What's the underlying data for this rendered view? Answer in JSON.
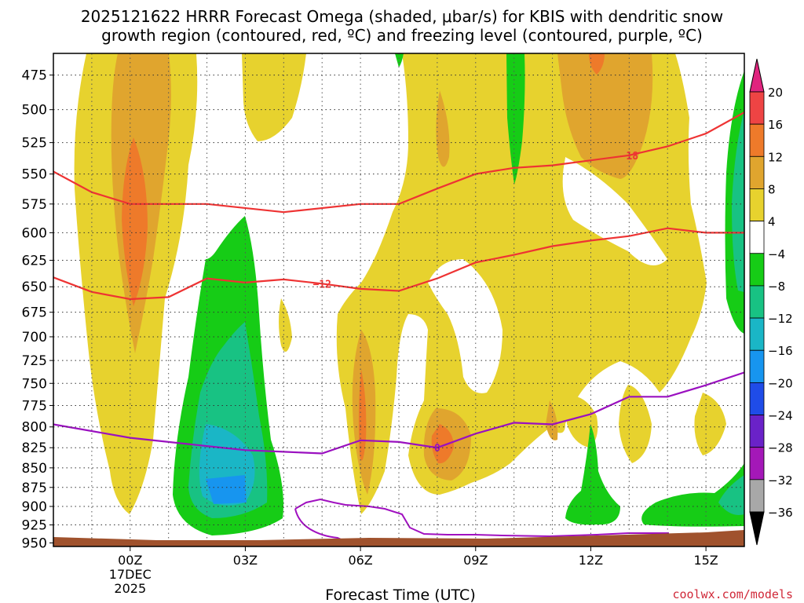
{
  "chart_data": {
    "type": "heatmap",
    "title_line1": "2025121622 HRRR Forecast Omega (shaded, μbar/s) for KBIS with dendritic snow",
    "title_line2": "growth region (contoured, red, ºC) and freezing level (contoured, purple, ºC)",
    "xlabel": "Forecast Time (UTC)",
    "x_ticks": [
      {
        "h": 0,
        "label": "00Z",
        "sub1": "17DEC",
        "sub2": "2025"
      },
      {
        "h": 3,
        "label": "03Z"
      },
      {
        "h": 6,
        "label": "06Z"
      },
      {
        "h": 9,
        "label": "09Z"
      },
      {
        "h": 12,
        "label": "12Z"
      },
      {
        "h": 15,
        "label": "15Z"
      }
    ],
    "xlim": [
      -2,
      16
    ],
    "y_ticks": [
      "475",
      "500",
      "525",
      "550",
      "575",
      "600",
      "625",
      "650",
      "675",
      "700",
      "725",
      "750",
      "775",
      "800",
      "825",
      "850",
      "875",
      "900",
      "925",
      "950"
    ],
    "ylim_hpa": [
      460,
      955
    ],
    "colorbar_labels": [
      "20",
      "16",
      "12",
      "8",
      "4",
      "−4",
      "−8",
      "−12",
      "−16",
      "−20",
      "−24",
      "−28",
      "−32",
      "−36"
    ],
    "colorbar_colors": [
      "#ee4444",
      "#ee7a2a",
      "#e0a52e",
      "#e7d22e",
      "#ffffff",
      "#16cc16",
      "#18c283",
      "#1ab6c6",
      "#1795ef",
      "#1f4ce8",
      "#6a22c8",
      "#a418b8",
      "#a8a8a8"
    ],
    "colorbar_top_color": "#e0247e",
    "colorbar_bottom_color": "#000000",
    "contours_red": [
      {
        "label": "−18",
        "points": [
          [
            -2,
            548
          ],
          [
            -1,
            565
          ],
          [
            0,
            575
          ],
          [
            2,
            575
          ],
          [
            4,
            582
          ],
          [
            6,
            575
          ],
          [
            7,
            575
          ],
          [
            8,
            562
          ],
          [
            9,
            550
          ],
          [
            10,
            545
          ],
          [
            11,
            543
          ],
          [
            13,
            535
          ],
          [
            14,
            528
          ],
          [
            15,
            518
          ],
          [
            16,
            502
          ]
        ]
      },
      {
        "label": "−12",
        "points": [
          [
            -2,
            641
          ],
          [
            -1,
            655
          ],
          [
            0,
            662
          ],
          [
            1,
            660
          ],
          [
            2,
            642
          ],
          [
            3,
            646
          ],
          [
            4,
            643
          ],
          [
            5,
            647
          ],
          [
            6,
            652
          ],
          [
            7,
            654
          ],
          [
            8,
            642
          ],
          [
            9,
            627
          ],
          [
            10,
            620
          ],
          [
            11,
            612
          ],
          [
            12,
            607
          ],
          [
            13,
            603
          ],
          [
            14,
            596
          ],
          [
            15,
            600
          ],
          [
            16,
            600
          ]
        ]
      }
    ],
    "contours_purple": [
      {
        "label": "0",
        "points": [
          [
            -2,
            797
          ],
          [
            0,
            813
          ],
          [
            1,
            818
          ],
          [
            3,
            828
          ],
          [
            4,
            830
          ],
          [
            5,
            832
          ],
          [
            6,
            816
          ],
          [
            7,
            818
          ],
          [
            8,
            825
          ],
          [
            9,
            808
          ],
          [
            10,
            795
          ],
          [
            11,
            797
          ],
          [
            12,
            785
          ],
          [
            13,
            765
          ],
          [
            14,
            765
          ],
          [
            15,
            752
          ],
          [
            16,
            738
          ]
        ]
      }
    ],
    "contour_labels_text": {
      "red_upper": "−18",
      "red_lower": "−12",
      "purple": "0"
    },
    "shaded_regions": [
      {
        "value": "4 to 8",
        "color": "#e7d22e",
        "desc": "broad weak ascent column 00Z, 00-03Z upper, 05Z-16Z"
      },
      {
        "value": "8 to 12",
        "color": "#e0a52e",
        "desc": "cores near 00Z, 06Z, 08Z, 12Z"
      },
      {
        "value": "12 to 16",
        "color": "#ee7a2a",
        "desc": "strongest cores near 00Z 560-700 hPa and 08Z 825 hPa"
      },
      {
        "value": "-4 to -8",
        "color": "#16cc16",
        "desc": "descent 02-04Z, 10Z, 12Z, 15Z"
      },
      {
        "value": "-8 to -12",
        "color": "#18c283",
        "desc": "descent core 02-03Z"
      },
      {
        "value": "-12 to -16",
        "color": "#1ab6c6",
        "desc": "descent core 02-03Z lower levels"
      }
    ]
  },
  "credit": "coolwx.com/models"
}
